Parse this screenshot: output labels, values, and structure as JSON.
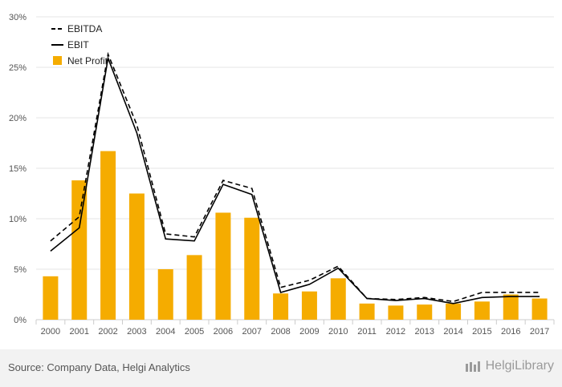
{
  "chart_data": {
    "type": "bar",
    "categories": [
      "2000",
      "2001",
      "2002",
      "2003",
      "2004",
      "2005",
      "2006",
      "2007",
      "2008",
      "2009",
      "2010",
      "2011",
      "2012",
      "2013",
      "2014",
      "2015",
      "2016",
      "2017"
    ],
    "ylim": [
      0,
      30
    ],
    "yticks": [
      "0%",
      "5%",
      "10%",
      "15%",
      "20%",
      "25%",
      "30%"
    ],
    "series": [
      {
        "name": "EBITDA",
        "kind": "line",
        "style": "dashed",
        "values": [
          7.8,
          10.2,
          26.3,
          19.3,
          8.5,
          8.2,
          13.8,
          13.0,
          3.2,
          3.9,
          5.3,
          2.1,
          2.0,
          2.2,
          1.8,
          2.7,
          2.7,
          2.7
        ]
      },
      {
        "name": "EBIT",
        "kind": "line",
        "style": "solid",
        "values": [
          6.8,
          9.1,
          25.9,
          18.5,
          8.0,
          7.8,
          13.4,
          12.4,
          2.7,
          3.5,
          5.1,
          2.1,
          1.9,
          2.1,
          1.6,
          2.2,
          2.3,
          2.3
        ]
      },
      {
        "name": "Net Profit",
        "kind": "bar",
        "values": [
          4.3,
          13.8,
          16.7,
          12.5,
          5.0,
          6.4,
          10.6,
          10.1,
          2.6,
          2.8,
          4.1,
          1.6,
          1.4,
          1.5,
          1.6,
          1.8,
          2.5,
          2.1
        ]
      }
    ],
    "legend_position": "top-left",
    "grid": true
  },
  "colors": {
    "bar": "#f5ac00",
    "line": "#000000",
    "grid": "#e6e6e6",
    "axis": "#cccccc"
  },
  "footer": {
    "source": "Source: Company Data, Helgi Analytics",
    "brand": "HelgiLibrary"
  }
}
